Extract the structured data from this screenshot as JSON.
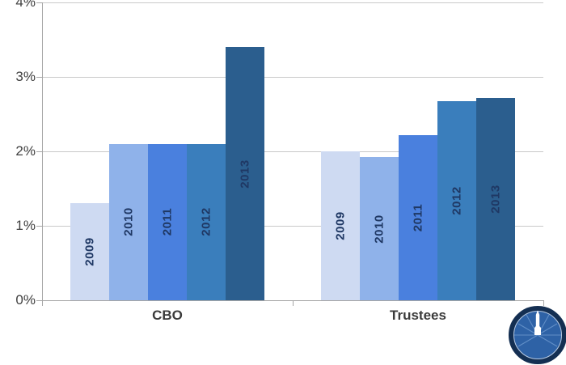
{
  "chart_data": {
    "type": "bar",
    "title": "",
    "xlabel": "",
    "ylabel": "",
    "grid": true,
    "legend_position": "none",
    "bar_label_style": "year inside bar, rotated vertical, navy bold",
    "y_axis": {
      "min": 0,
      "max": 4,
      "tick_step": 1,
      "tick_labels": [
        "0%",
        "1%",
        "2%",
        "3%",
        "4%"
      ]
    },
    "categories": [
      "CBO",
      "Trustees"
    ],
    "series": [
      {
        "name": "2009",
        "color": "#CEDAF2",
        "values": [
          1.3,
          2.0
        ]
      },
      {
        "name": "2010",
        "color": "#8FB2EA",
        "values": [
          2.1,
          1.92
        ]
      },
      {
        "name": "2011",
        "color": "#4A80DE",
        "values": [
          2.1,
          2.22
        ]
      },
      {
        "name": "2012",
        "color": "#3A7EBC",
        "values": [
          2.1,
          2.67
        ]
      },
      {
        "name": "2013",
        "color": "#2B5E8E",
        "values": [
          3.4,
          2.72
        ]
      }
    ],
    "colors": {
      "gridline": "#c9c9c9",
      "axis": "#a6a6a6",
      "axis_text": "#404040",
      "bar_label_text": "#1f3864"
    }
  },
  "branding": {
    "logo_name": "crfb-monument-logo",
    "logo_ring_color": "#142F52",
    "logo_fill_color": "#2E62A6",
    "logo_monument_color": "#FFFFFF"
  }
}
